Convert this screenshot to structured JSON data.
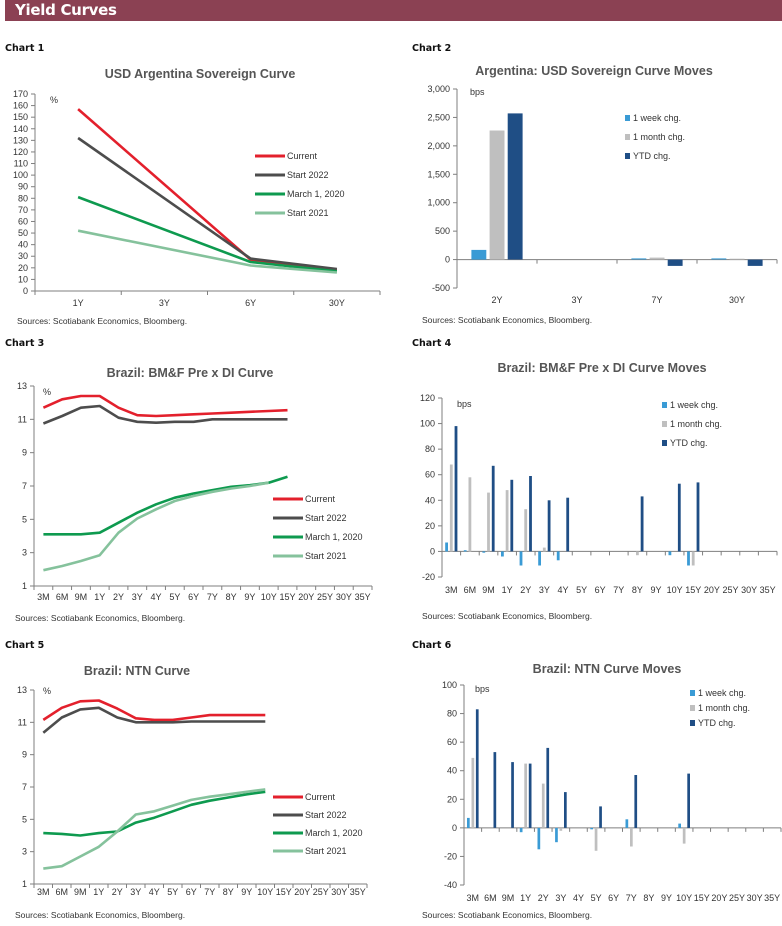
{
  "header": {
    "title": "Yield Curves",
    "color": "#8b4153"
  },
  "source_text": "Sources: Scotiabank Economics, Bloomberg.",
  "colors": {
    "current": "#e3202c",
    "start2022": "#4d4d4d",
    "march2020": "#0e9a4f",
    "start2021": "#85c29c",
    "week": "#3a9bd5",
    "month": "#bfbfbf",
    "ytd": "#1f4e85"
  },
  "chart_data": [
    {
      "label": "Chart 1",
      "type": "line",
      "title": "USD Argentina Sovereign Curve",
      "unit": "%",
      "categories": [
        "1Y",
        "3Y",
        "6Y",
        "30Y"
      ],
      "ylim": [
        0,
        170
      ],
      "yticks": [
        0,
        10,
        20,
        30,
        40,
        50,
        60,
        70,
        80,
        90,
        100,
        110,
        120,
        130,
        140,
        150,
        160,
        170
      ],
      "legend_position": "right",
      "series": [
        {
          "name": "Current",
          "color_key": "current",
          "values": [
            157,
            null,
            27,
            18
          ]
        },
        {
          "name": "Start 2022",
          "color_key": "start2022",
          "values": [
            132,
            null,
            28,
            19
          ]
        },
        {
          "name": "March 1, 2020",
          "color_key": "march2020",
          "values": [
            81,
            null,
            25,
            17
          ]
        },
        {
          "name": "Start 2021",
          "color_key": "start2021",
          "values": [
            52,
            null,
            22,
            16
          ]
        }
      ]
    },
    {
      "label": "Chart 2",
      "type": "bar",
      "title": "Argentina: USD Sovereign Curve Moves",
      "unit": "bps",
      "categories": [
        "2Y",
        "3Y",
        "7Y",
        "30Y"
      ],
      "ylim": [
        -500,
        3000
      ],
      "yticks": [
        -500,
        0,
        500,
        1000,
        1500,
        2000,
        2500,
        3000
      ],
      "ytick_labels": [
        "-500",
        "0",
        "500",
        "1,000",
        "1,500",
        "2,000",
        "2,500",
        "3,000"
      ],
      "legend_position": "top-right",
      "series": [
        {
          "name": "1 week chg.",
          "color_key": "week",
          "values": [
            170,
            null,
            20,
            20
          ]
        },
        {
          "name": "1 month chg.",
          "color_key": "month",
          "values": [
            2270,
            null,
            35,
            15
          ]
        },
        {
          "name": "YTD chg.",
          "color_key": "ytd",
          "values": [
            2570,
            null,
            -110,
            -110
          ]
        }
      ]
    },
    {
      "label": "Chart 3",
      "type": "line",
      "title": "Brazil: BM&F Pre x DI Curve",
      "unit": "%",
      "categories": [
        "3M",
        "6M",
        "9M",
        "1Y",
        "2Y",
        "3Y",
        "4Y",
        "5Y",
        "6Y",
        "7Y",
        "8Y",
        "9Y",
        "10Y",
        "15Y",
        "20Y",
        "25Y",
        "30Y",
        "35Y"
      ],
      "ylim": [
        1,
        13
      ],
      "yticks": [
        1,
        3,
        5,
        7,
        9,
        11,
        13
      ],
      "legend_position": "right",
      "series": [
        {
          "name": "Current",
          "color_key": "current",
          "values": [
            11.7,
            12.2,
            12.4,
            12.4,
            11.7,
            11.25,
            11.2,
            11.25,
            11.3,
            11.35,
            11.4,
            11.45,
            11.5,
            11.55,
            null,
            null,
            null,
            null
          ]
        },
        {
          "name": "Start 2022",
          "color_key": "start2022",
          "values": [
            10.75,
            11.2,
            11.7,
            11.8,
            11.1,
            10.85,
            10.8,
            10.85,
            10.85,
            11.0,
            11.0,
            11.0,
            11.0,
            11.0,
            null,
            null,
            null,
            null
          ]
        },
        {
          "name": "March 1, 2020",
          "color_key": "march2020",
          "values": [
            4.1,
            4.1,
            4.1,
            4.2,
            4.8,
            5.4,
            5.9,
            6.3,
            6.55,
            6.75,
            6.95,
            7.05,
            7.2,
            7.55,
            null,
            null,
            null,
            null
          ]
        },
        {
          "name": "Start 2021",
          "color_key": "start2021",
          "values": [
            1.95,
            2.2,
            2.5,
            2.85,
            4.2,
            5.05,
            5.6,
            6.1,
            6.4,
            6.65,
            6.85,
            7.0,
            7.2,
            null,
            null,
            null,
            null,
            null
          ]
        }
      ]
    },
    {
      "label": "Chart 4",
      "type": "bar",
      "title": "Brazil: BM&F Pre x DI Curve Moves",
      "unit": "bps",
      "categories": [
        "3M",
        "6M",
        "9M",
        "1Y",
        "2Y",
        "3Y",
        "4Y",
        "5Y",
        "6Y",
        "7Y",
        "8Y",
        "9Y",
        "10Y",
        "15Y",
        "20Y",
        "25Y",
        "30Y",
        "35Y"
      ],
      "ylim": [
        -20,
        120
      ],
      "yticks": [
        -20,
        0,
        20,
        40,
        60,
        80,
        100,
        120
      ],
      "legend_position": "top-right",
      "series": [
        {
          "name": "1 week chg.",
          "color_key": "week",
          "values": [
            7,
            1,
            -1,
            -4,
            -11,
            -11,
            -7,
            null,
            null,
            null,
            null,
            null,
            -3,
            -11,
            null,
            null,
            null,
            null
          ]
        },
        {
          "name": "1 month chg.",
          "color_key": "month",
          "values": [
            68,
            58,
            46,
            48,
            33,
            3,
            null,
            null,
            null,
            null,
            -3,
            null,
            null,
            -11,
            null,
            null,
            null,
            null
          ]
        },
        {
          "name": "YTD chg.",
          "color_key": "ytd",
          "values": [
            98,
            null,
            67,
            56,
            59,
            40,
            42,
            null,
            null,
            null,
            43,
            null,
            53,
            54,
            null,
            null,
            null,
            null
          ]
        }
      ]
    },
    {
      "label": "Chart 5",
      "type": "line",
      "title": "Brazil: NTN Curve",
      "unit": "%",
      "categories": [
        "3M",
        "6M",
        "9M",
        "1Y",
        "2Y",
        "3Y",
        "4Y",
        "5Y",
        "6Y",
        "7Y",
        "8Y",
        "9Y",
        "10Y",
        "15Y",
        "20Y",
        "25Y",
        "30Y",
        "35Y"
      ],
      "ylim": [
        1,
        13
      ],
      "yticks": [
        1,
        3,
        5,
        7,
        9,
        11,
        13
      ],
      "legend_position": "right",
      "series": [
        {
          "name": "Current",
          "color_key": "current",
          "values": [
            11.15,
            11.9,
            12.3,
            12.35,
            11.85,
            11.25,
            11.15,
            11.15,
            11.3,
            11.45,
            11.45,
            11.45,
            11.45,
            null,
            null,
            null,
            null,
            null
          ]
        },
        {
          "name": "Start 2022",
          "color_key": "start2022",
          "values": [
            10.35,
            11.3,
            11.8,
            11.9,
            11.3,
            11.0,
            11.0,
            11.0,
            11.05,
            11.05,
            11.05,
            11.05,
            11.05,
            null,
            null,
            null,
            null,
            null
          ]
        },
        {
          "name": "March 1, 2020",
          "color_key": "march2020",
          "values": [
            4.15,
            4.1,
            4.0,
            4.15,
            4.25,
            4.8,
            5.1,
            5.5,
            5.9,
            6.15,
            6.35,
            6.55,
            6.7,
            null,
            null,
            null,
            null,
            null
          ]
        },
        {
          "name": "Start 2021",
          "color_key": "start2021",
          "values": [
            1.95,
            2.1,
            2.7,
            3.3,
            4.25,
            5.3,
            5.5,
            5.85,
            6.2,
            6.4,
            6.55,
            6.7,
            6.85,
            null,
            null,
            null,
            null,
            null
          ]
        }
      ]
    },
    {
      "label": "Chart 6",
      "type": "bar",
      "title": "Brazil: NTN Curve Moves",
      "unit": "bps",
      "categories": [
        "3M",
        "6M",
        "9M",
        "1Y",
        "2Y",
        "3Y",
        "4Y",
        "5Y",
        "6Y",
        "7Y",
        "8Y",
        "9Y",
        "10Y",
        "15Y",
        "20Y",
        "25Y",
        "30Y",
        "35Y"
      ],
      "ylim": [
        -40,
        100
      ],
      "yticks": [
        -40,
        -20,
        0,
        20,
        40,
        60,
        80,
        100
      ],
      "legend_position": "top-right",
      "series": [
        {
          "name": "1 week chg.",
          "color_key": "week",
          "values": [
            7,
            null,
            null,
            -3,
            -15,
            -10,
            null,
            -1,
            null,
            6,
            null,
            null,
            3,
            null,
            null,
            null,
            null,
            null
          ]
        },
        {
          "name": "1 month chg.",
          "color_key": "month",
          "values": [
            49,
            null,
            null,
            45,
            31,
            -2,
            null,
            -16,
            null,
            -13,
            null,
            null,
            -11,
            null,
            null,
            null,
            null,
            null
          ]
        },
        {
          "name": "YTD chg.",
          "color_key": "ytd",
          "values": [
            83,
            53,
            46,
            45,
            56,
            25,
            null,
            15,
            null,
            37,
            null,
            null,
            38,
            null,
            null,
            null,
            null,
            null
          ]
        }
      ]
    }
  ]
}
